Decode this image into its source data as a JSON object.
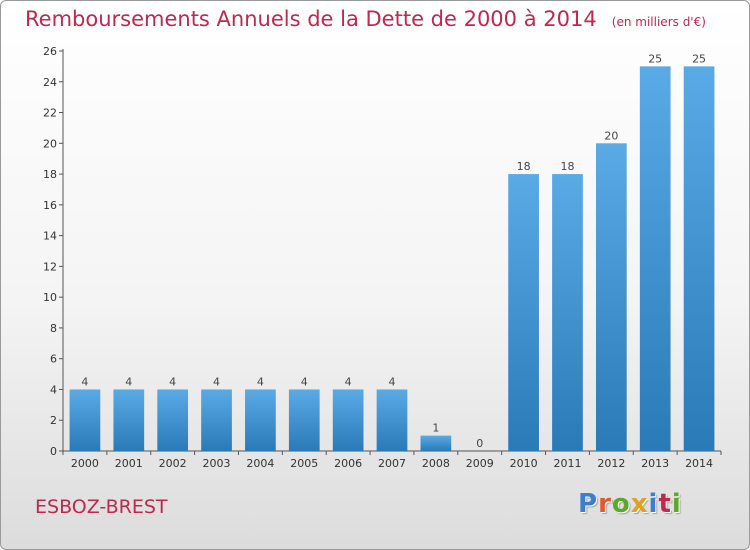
{
  "header": {
    "title": "Remboursements Annuels de la Dette de 2000 à 2014",
    "subtitle": "(en milliers d'€)"
  },
  "footer": {
    "city": "ESBOZ-BREST",
    "logo": {
      "text": "Proxiti",
      "letters": [
        {
          "ch": "P",
          "color": "#3a7fd0"
        },
        {
          "ch": "r",
          "color": "#e05a2a"
        },
        {
          "ch": "o",
          "color": "#5aaa2a"
        },
        {
          "ch": "x",
          "color": "#e0a020"
        },
        {
          "ch": "i",
          "color": "#3a7fd0"
        },
        {
          "ch": "t",
          "color": "#c0284e"
        },
        {
          "ch": "i",
          "color": "#5aaa2a"
        }
      ]
    }
  },
  "colors": {
    "bar_top": "#5aaae6",
    "bar_bottom": "#2a7ab8",
    "accent": "#c0284e"
  },
  "chart_data": {
    "type": "bar",
    "title": "Remboursements Annuels de la Dette de 2000 à 2014",
    "subtitle": "(en milliers d'€)",
    "xlabel": "",
    "ylabel": "",
    "categories": [
      "2000",
      "2001",
      "2002",
      "2003",
      "2004",
      "2005",
      "2006",
      "2007",
      "2008",
      "2009",
      "2010",
      "2011",
      "2012",
      "2013",
      "2014"
    ],
    "values": [
      4,
      4,
      4,
      4,
      4,
      4,
      4,
      4,
      1,
      0,
      18,
      18,
      20,
      25,
      25
    ],
    "data_labels": [
      "4",
      "4",
      "4",
      "4",
      "4",
      "4",
      "4",
      "4",
      "1",
      "0",
      "18",
      "18",
      "20",
      "25",
      "25"
    ],
    "ylim": [
      0,
      26
    ],
    "yticks": [
      0,
      2,
      4,
      6,
      8,
      10,
      12,
      14,
      16,
      18,
      20,
      22,
      24,
      26
    ],
    "grid": false,
    "legend": "none"
  }
}
